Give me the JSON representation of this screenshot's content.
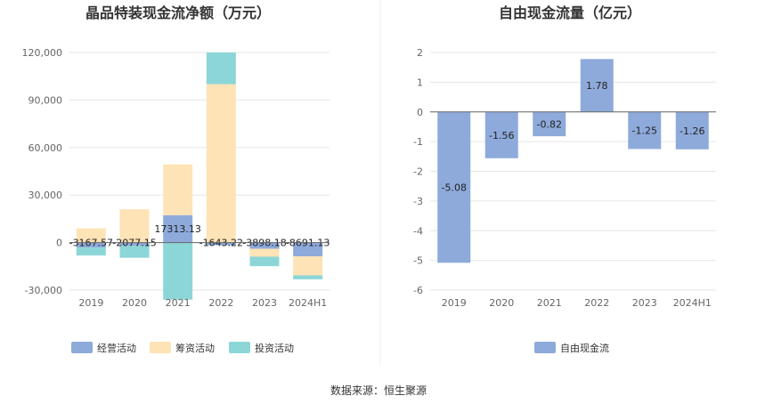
{
  "source_text": "数据来源：恒生聚源",
  "colors": {
    "operating": "#8eaadb",
    "financing": "#fde3b5",
    "investing": "#8cd6d8",
    "fcf": "#8eaadb",
    "grid": "#e6e6e6"
  },
  "chart_data": [
    {
      "type": "bar",
      "stacked": true,
      "title": "晶品特装现金流净额（万元）",
      "categories": [
        "2019",
        "2020",
        "2021",
        "2022",
        "2023",
        "2024H1"
      ],
      "ylim": [
        -30000,
        120000
      ],
      "yticks": [
        "120,000",
        "90,000",
        "60,000",
        "30,000",
        "0",
        "-30,000"
      ],
      "ytick_values": [
        120000,
        90000,
        60000,
        30000,
        0,
        -30000
      ],
      "series": [
        {
          "name": "经营活动",
          "color_key": "operating",
          "values": [
            -3167.57,
            -2077.15,
            17313.13,
            -1643.22,
            -3898.18,
            -8691.13
          ],
          "labels": [
            "-3167.57",
            "-2077.15",
            "17313.13",
            "-1643.22",
            "-3898.18",
            "-8691.13"
          ]
        },
        {
          "name": "筹资活动",
          "color_key": "financing",
          "values": [
            9000,
            21000,
            32000,
            100000,
            -5000,
            -12000
          ]
        },
        {
          "name": "投资活动",
          "color_key": "investing",
          "values": [
            -5000,
            -7500,
            -36000,
            20000,
            -6000,
            -2500
          ]
        }
      ],
      "legend_position": "bottom",
      "grid": true
    },
    {
      "type": "bar",
      "title": "自由现金流量（亿元）",
      "categories": [
        "2019",
        "2020",
        "2021",
        "2022",
        "2023",
        "2024H1"
      ],
      "ylim": [
        -6,
        2
      ],
      "yticks": [
        "2",
        "1",
        "0",
        "-1",
        "-2",
        "-3",
        "-4",
        "-5",
        "-6"
      ],
      "ytick_values": [
        2,
        1,
        0,
        -1,
        -2,
        -3,
        -4,
        -5,
        -6
      ],
      "series": [
        {
          "name": "自由现金流",
          "color_key": "fcf",
          "values": [
            -5.08,
            -1.56,
            -0.82,
            1.78,
            -1.25,
            -1.26
          ],
          "labels": [
            "-5.08",
            "-1.56",
            "-0.82",
            "1.78",
            "-1.25",
            "-1.26"
          ]
        }
      ],
      "legend_position": "bottom",
      "grid": true
    }
  ]
}
